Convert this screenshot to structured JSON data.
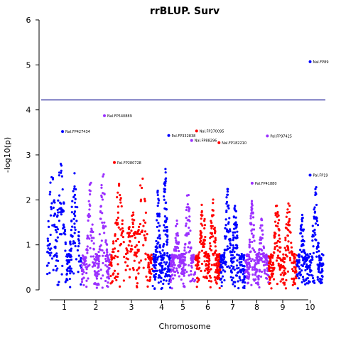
{
  "chart_data": {
    "type": "scatter",
    "title": "rrBLUP. Surv",
    "xlabel": "Chromosome",
    "ylabel": "-log10(p)",
    "ylim": [
      0,
      6
    ],
    "y_ticks": [
      "0",
      "1",
      "2",
      "3",
      "4",
      "5",
      "6"
    ],
    "chromosomes": [
      "1",
      "2",
      "3",
      "4",
      "5",
      "6",
      "7",
      "8",
      "9",
      "10"
    ],
    "colors": [
      "#0000ff",
      "#9b30ff",
      "#ff0000"
    ],
    "threshold": 4.22,
    "threshold_color": "#00008b",
    "annotations": [
      {
        "label": "Nal.FP427434",
        "chromosome": 1,
        "position": 0.45,
        "y": 3.52
      },
      {
        "label": "Nal.FP540889",
        "chromosome": 2,
        "position": 0.8,
        "y": 3.87
      },
      {
        "label": "Pal.FP280728",
        "chromosome": 3,
        "position": 0.1,
        "y": 2.83
      },
      {
        "label": "Pal.FP332838",
        "chromosome": 4,
        "position": 0.9,
        "y": 3.43
      },
      {
        "label": "Nal.FP370095",
        "chromosome": 6,
        "position": 0.05,
        "y": 3.53
      },
      {
        "label": "Nal.FP88296",
        "chromosome": 5,
        "position": 0.85,
        "y": 3.32
      },
      {
        "label": "Nal.FP182210",
        "chromosome": 6,
        "position": 0.95,
        "y": 3.27
      },
      {
        "label": "Pal.FP41880",
        "chromosome": 8,
        "position": 0.3,
        "y": 2.37
      },
      {
        "label": "Pal.FP97425",
        "chromosome": 8,
        "position": 0.95,
        "y": 3.42
      },
      {
        "label": "Nal.FP89",
        "chromosome": 10,
        "position": 0.5,
        "y": 5.07
      },
      {
        "label": "Pal.FP19",
        "chromosome": 10,
        "position": 0.5,
        "y": 2.55
      }
    ]
  }
}
